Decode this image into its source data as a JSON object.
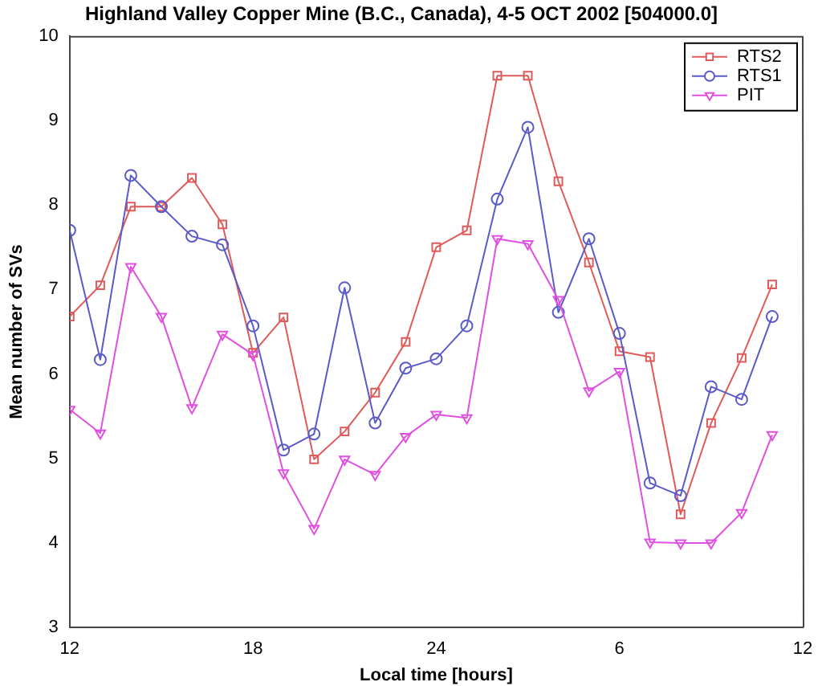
{
  "chart_data": {
    "type": "line",
    "title": "Highland Valley Copper Mine (B.C., Canada), 4-5 OCT 2002 [504000.0]",
    "xlabel": "Local time [hours]",
    "ylabel": "Mean number of SVs",
    "x": [
      "2002-10-04T12:00",
      "2002-10-04T13:00",
      "2002-10-04T14:00",
      "2002-10-04T15:00",
      "2002-10-04T16:00",
      "2002-10-04T17:00",
      "2002-10-04T18:00",
      "2002-10-04T19:00",
      "2002-10-04T20:00",
      "2002-10-04T21:00",
      "2002-10-04T22:00",
      "2002-10-04T23:00",
      "2002-10-05T00:00",
      "2002-10-05T01:00",
      "2002-10-05T02:00",
      "2002-10-05T03:00",
      "2002-10-05T04:00",
      "2002-10-05T05:00",
      "2002-10-05T06:00",
      "2002-10-05T07:00",
      "2002-10-05T08:00",
      "2002-10-05T09:00",
      "2002-10-05T10:00",
      "2002-10-05T11:00"
    ],
    "xlim": [
      "2002-10-04T12:00",
      "2002-10-05T12:00"
    ],
    "xticks": [
      {
        "value": "2002-10-04T12:00",
        "label": "12"
      },
      {
        "value": "2002-10-04T18:00",
        "label": "18"
      },
      {
        "value": "2002-10-05T00:00",
        "label": "24"
      },
      {
        "value": "2002-10-05T06:00",
        "label": "6"
      },
      {
        "value": "2002-10-05T12:00",
        "label": "12"
      }
    ],
    "ylim": [
      3,
      10
    ],
    "yticks": [
      3,
      4,
      5,
      6,
      7,
      8,
      9,
      10
    ],
    "grid": false,
    "legend": "top right",
    "line_style": "solid",
    "series": [
      {
        "name": "RTS2",
        "color": "#e05a5a",
        "marker": "square",
        "values": [
          6.68,
          7.05,
          7.98,
          7.98,
          8.32,
          7.77,
          6.25,
          6.67,
          4.99,
          5.32,
          5.78,
          6.38,
          7.5,
          7.7,
          9.53,
          9.53,
          8.28,
          7.32,
          6.27,
          6.2,
          4.34,
          5.42,
          6.19,
          7.06
        ]
      },
      {
        "name": "RTS1",
        "color": "#5a5ac8",
        "marker": "circle",
        "values": [
          7.7,
          6.17,
          8.35,
          7.98,
          7.63,
          7.53,
          6.57,
          5.1,
          5.29,
          7.02,
          5.42,
          6.07,
          6.18,
          6.57,
          8.07,
          8.92,
          6.73,
          7.6,
          6.48,
          4.71,
          4.56,
          5.85,
          5.7,
          6.68
        ]
      },
      {
        "name": "PIT",
        "color": "#e050e0",
        "marker": "triangle",
        "values": [
          5.58,
          5.3,
          7.27,
          6.68,
          5.6,
          6.47,
          6.23,
          4.83,
          4.17,
          4.99,
          4.81,
          5.26,
          5.52,
          5.48,
          7.6,
          7.54,
          6.88,
          5.8,
          6.03,
          4.01,
          4.0,
          4.0,
          4.36,
          5.28
        ]
      }
    ]
  }
}
